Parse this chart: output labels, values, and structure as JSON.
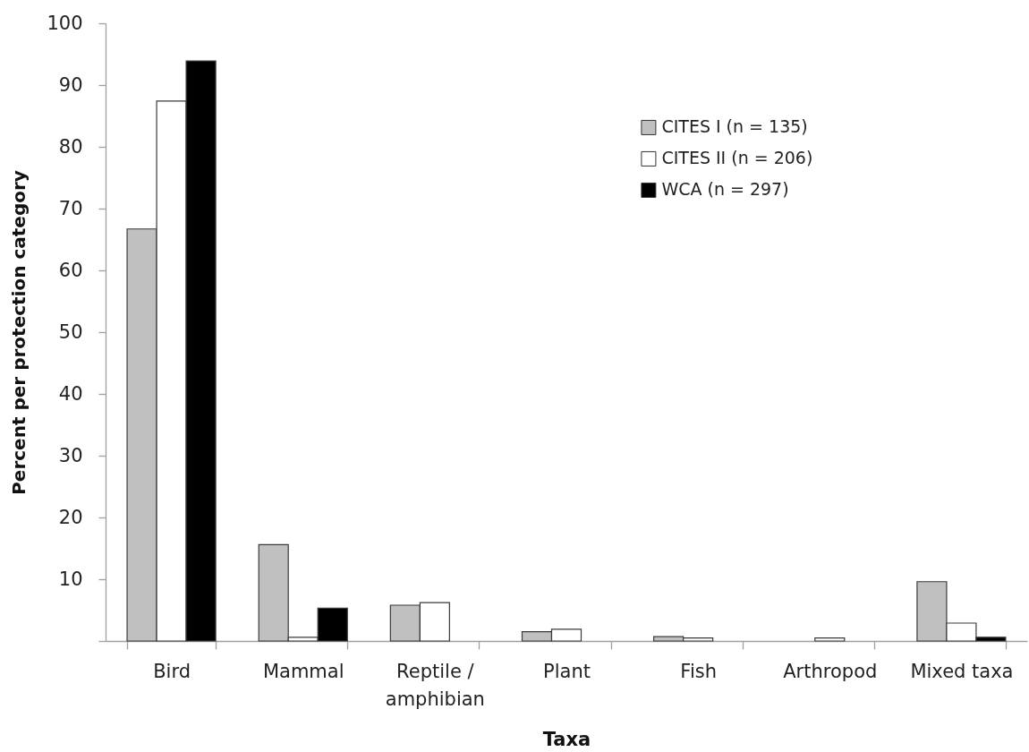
{
  "chart_data": {
    "type": "bar",
    "xlabel": "Taxa",
    "ylabel": "Percent per protection category",
    "categories": [
      "Bird",
      "Mammal",
      "Reptile / amphibian",
      "Plant",
      "Fish",
      "Arthropod",
      "Mixed taxa"
    ],
    "series": [
      {
        "name": "CITES I (n = 135)",
        "color": "#c0c0c0",
        "values": [
          66.7,
          15.6,
          5.8,
          1.5,
          0.7,
          0,
          9.6
        ]
      },
      {
        "name": "CITES II (n = 206)",
        "color": "#ffffff",
        "values": [
          87.4,
          0.6,
          6.2,
          1.9,
          0.5,
          0.5,
          2.9
        ]
      },
      {
        "name": "WCA (n = 297)",
        "color": "#000000",
        "values": [
          93.9,
          5.3,
          0,
          0,
          0,
          0,
          0.6
        ]
      }
    ],
    "ylim": [
      0,
      100
    ],
    "yticks": [
      {
        "value": 0,
        "label": null
      },
      10,
      20,
      30,
      40,
      50,
      60,
      70,
      80,
      90,
      100
    ],
    "grid": false,
    "legend": "top right"
  }
}
